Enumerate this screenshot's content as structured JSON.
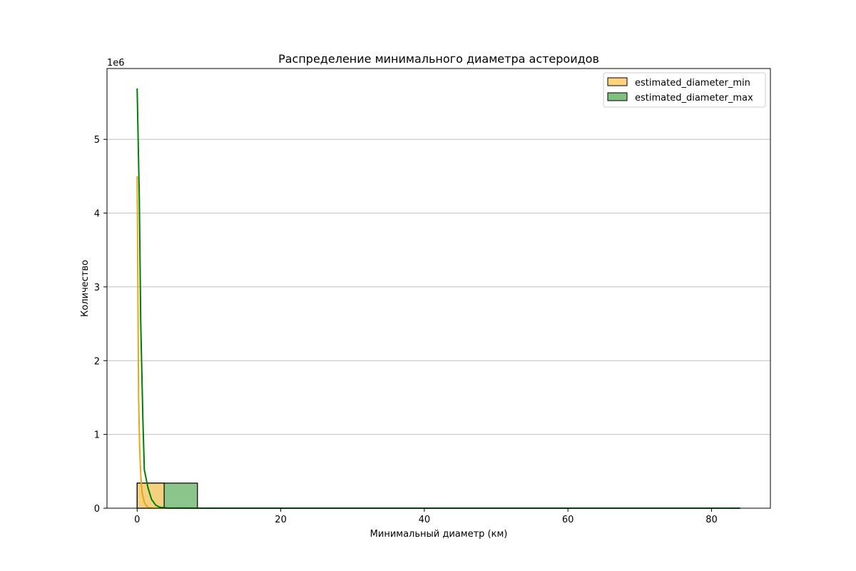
{
  "chart_data": {
    "type": "bar",
    "title": "Распределение минимального диаметра астероидов",
    "xlabel": "Минимальный диаметр (км)",
    "ylabel": "Количество",
    "y_offset_text": "1e6",
    "y_multiplier": 1000000,
    "xlim": [
      -4.2,
      88.2
    ],
    "ylim": [
      0,
      5960000
    ],
    "x_ticks": [
      0,
      20,
      40,
      60,
      80
    ],
    "y_ticks": [
      0,
      1,
      2,
      3,
      4,
      5
    ],
    "grid": {
      "axis": "y",
      "visible": true,
      "color": "#c0c0c0"
    },
    "legend_position": "top-right",
    "series": [
      {
        "name": "estimated_diameter_max",
        "color": "#008000",
        "fill": "#7fbf7f",
        "bins": [
          {
            "x0": 0.0,
            "x1": 8.4,
            "count": 340000
          },
          {
            "x0": 8.4,
            "x1": 84.0,
            "count": 0
          }
        ],
        "kde": [
          [
            0.0,
            5690000
          ],
          [
            0.3,
            4200000
          ],
          [
            0.5,
            2500000
          ],
          [
            0.8,
            1200000
          ],
          [
            1.0,
            520000
          ],
          [
            1.5,
            280000
          ],
          [
            2.0,
            120000
          ],
          [
            2.6,
            40000
          ],
          [
            3.2,
            12000
          ],
          [
            4.2,
            3000
          ],
          [
            6.0,
            1000
          ],
          [
            10.0,
            200
          ],
          [
            20.0,
            0
          ],
          [
            40.0,
            0
          ],
          [
            60.0,
            0
          ],
          [
            84.0,
            0
          ]
        ]
      },
      {
        "name": "estimated_diameter_min",
        "color": "#e6a817",
        "fill": "#ffd27f",
        "bins": [
          {
            "x0": 0.0,
            "x1": 3.76,
            "count": 340000
          }
        ],
        "kde": [
          [
            0.0,
            4500000
          ],
          [
            0.1,
            3000000
          ],
          [
            0.2,
            1500000
          ],
          [
            0.35,
            800000
          ],
          [
            0.5,
            450000
          ],
          [
            0.7,
            200000
          ],
          [
            1.0,
            80000
          ],
          [
            1.3,
            30000
          ],
          [
            1.6,
            8000
          ],
          [
            2.2,
            1500
          ],
          [
            3.0,
            200
          ],
          [
            5.0,
            0
          ]
        ]
      }
    ]
  }
}
